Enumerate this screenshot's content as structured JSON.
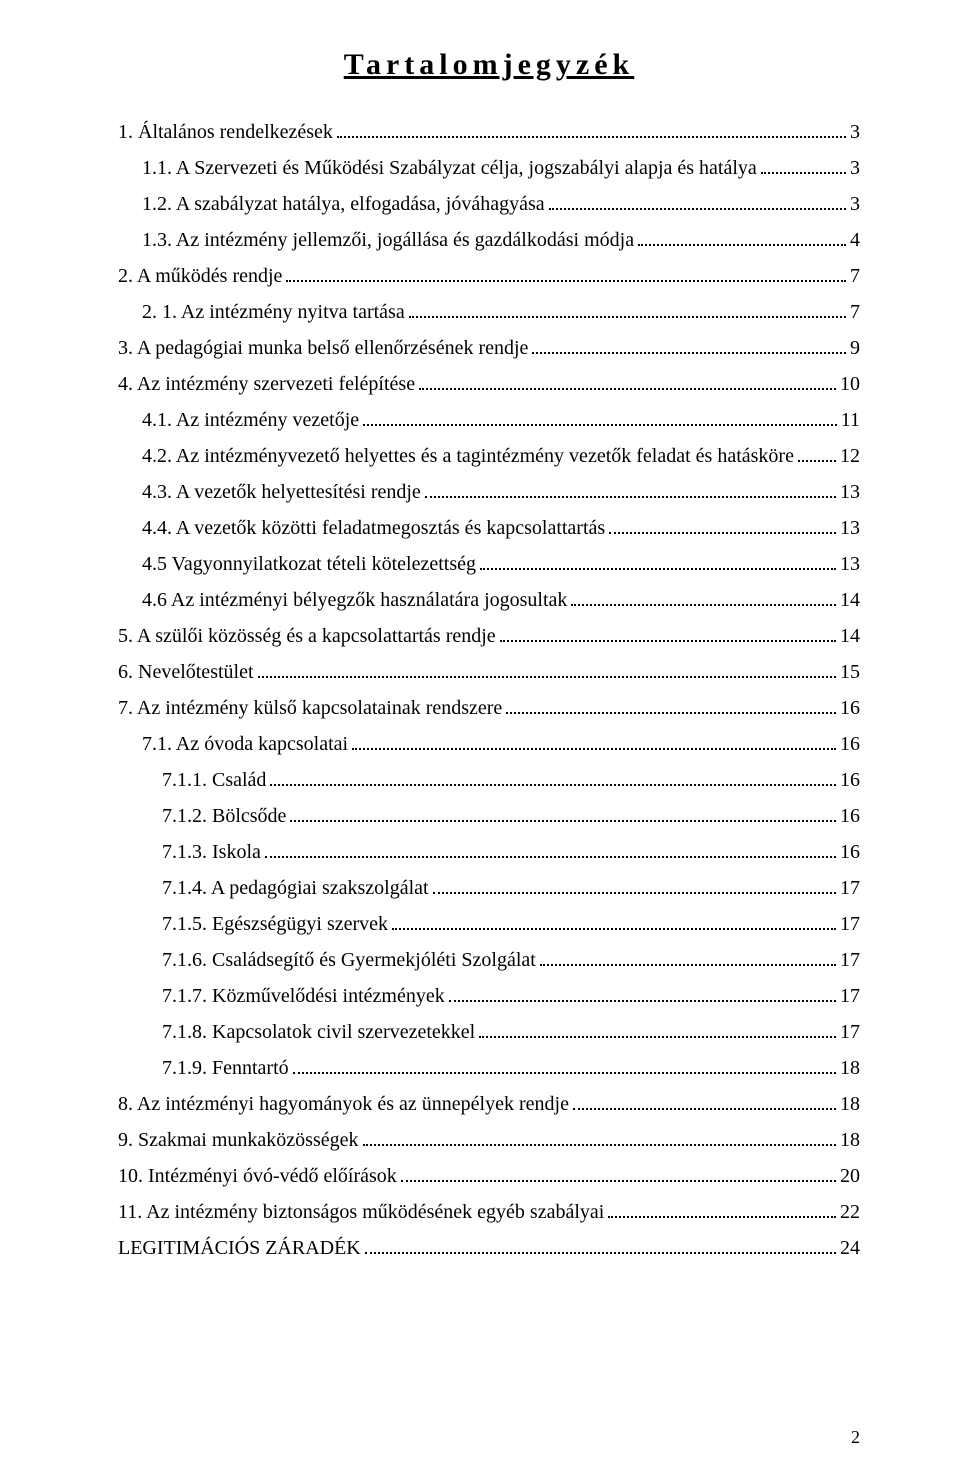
{
  "title": "Tartalomjegyzék",
  "page_number": "2",
  "entries": [
    {
      "label": "1. Általános rendelkezések",
      "page": "3",
      "indent": 0
    },
    {
      "label": "1.1. A Szervezeti és Működési Szabályzat célja, jogszabályi alapja és hatálya",
      "page": "3",
      "indent": 1
    },
    {
      "label": "1.2. A szabályzat hatálya, elfogadása, jóváhagyása",
      "page": "3",
      "indent": 1
    },
    {
      "label": "1.3. Az intézmény jellemzői, jogállása és gazdálkodási módja",
      "page": "4",
      "indent": 1
    },
    {
      "label": "2. A működés rendje",
      "page": "7",
      "indent": 0
    },
    {
      "label": "2. 1. Az intézmény nyitva tartása",
      "page": "7",
      "indent": 1
    },
    {
      "label": "3. A pedagógiai munka belső ellenőrzésének rendje",
      "page": "9",
      "indent": 0
    },
    {
      "label": "4. Az intézmény szervezeti felépítése",
      "page": "10",
      "indent": 0
    },
    {
      "label": "4.1. Az intézmény vezetője",
      "page": "11",
      "indent": 1
    },
    {
      "label": "4.2. Az intézményvezető helyettes és a tagintézmény vezetők feladat és hatásköre",
      "page": "12",
      "indent": 1
    },
    {
      "label": "4.3. A vezetők helyettesítési rendje",
      "page": "13",
      "indent": 1
    },
    {
      "label": "4.4. A vezetők közötti feladatmegosztás és kapcsolattartás",
      "page": "13",
      "indent": 1
    },
    {
      "label": "4.5 Vagyonnyilatkozat tételi kötelezettség",
      "page": "13",
      "indent": 1
    },
    {
      "label": "4.6 Az intézményi bélyegzők használatára jogosultak",
      "page": "14",
      "indent": 1
    },
    {
      "label": "5. A szülői közösség és a kapcsolattartás rendje",
      "page": "14",
      "indent": 0
    },
    {
      "label": "6. Nevelőtestület",
      "page": "15",
      "indent": 0
    },
    {
      "label": "7. Az intézmény külső kapcsolatainak rendszere",
      "page": "16",
      "indent": 0
    },
    {
      "label": "7.1. Az óvoda kapcsolatai",
      "page": "16",
      "indent": 1
    },
    {
      "label": "7.1.1. Család",
      "page": "16",
      "indent": 2
    },
    {
      "label": "7.1.2. Bölcsőde",
      "page": "16",
      "indent": 2
    },
    {
      "label": "7.1.3. Iskola",
      "page": "16",
      "indent": 2
    },
    {
      "label": "7.1.4. A pedagógiai szakszolgálat",
      "page": "17",
      "indent": 2
    },
    {
      "label": "7.1.5. Egészségügyi szervek",
      "page": "17",
      "indent": 2
    },
    {
      "label": "7.1.6. Családsegítő és Gyermekjóléti Szolgálat",
      "page": "17",
      "indent": 2
    },
    {
      "label": "7.1.7. Közművelődési intézmények",
      "page": "17",
      "indent": 2
    },
    {
      "label": "7.1.8. Kapcsolatok civil szervezetekkel",
      "page": "17",
      "indent": 2
    },
    {
      "label": "7.1.9. Fenntartó",
      "page": "18",
      "indent": 2
    },
    {
      "label": "8. Az intézményi hagyományok és az ünnepélyek rendje",
      "page": "18",
      "indent": 0
    },
    {
      "label": "9. Szakmai munkaközösségek",
      "page": "18",
      "indent": 0
    },
    {
      "label": "10. Intézményi óvó-védő előírások",
      "page": "20",
      "indent": 0
    },
    {
      "label": "11. Az intézmény biztonságos működésének egyéb szabályai",
      "page": "22",
      "indent": 0
    },
    {
      "label": "LEGITIMÁCIÓS ZÁRADÉK",
      "page": "24",
      "indent": 0
    }
  ]
}
